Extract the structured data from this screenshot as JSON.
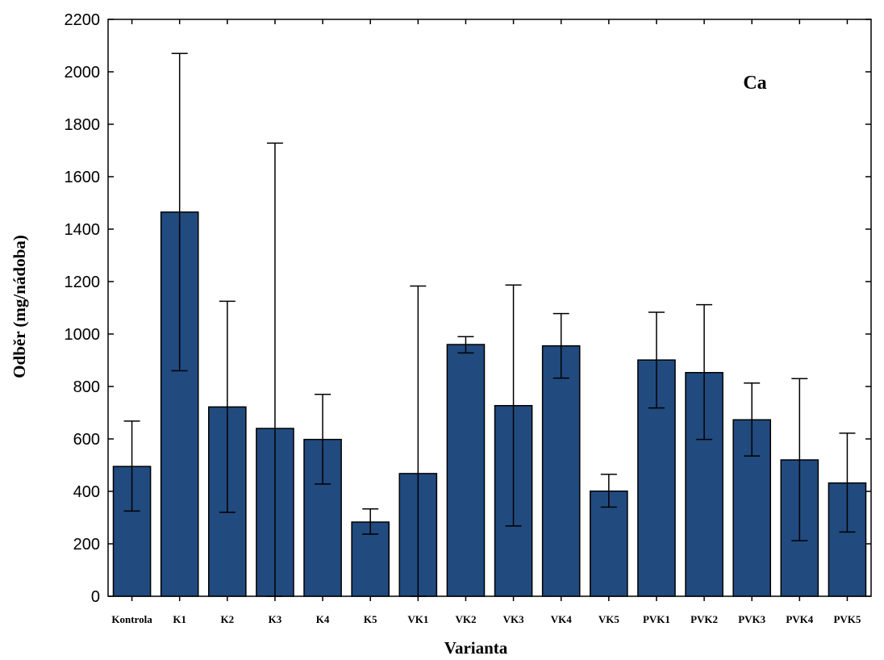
{
  "chart_data": {
    "type": "bar",
    "annotation": "Ca",
    "xlabel": "Varianta",
    "ylabel": "Odběr (mg/nádoba)",
    "ylim": [
      0,
      2200
    ],
    "yticks": [
      0,
      200,
      400,
      600,
      800,
      1000,
      1200,
      1400,
      1600,
      1800,
      2000,
      2200
    ],
    "grid": false,
    "bar_color": "#214a7f",
    "categories": [
      "Kontrola",
      "K1",
      "K2",
      "K3",
      "K4",
      "K5",
      "VK1",
      "VK2",
      "VK3",
      "VK4",
      "VK5",
      "PVK1",
      "PVK2",
      "PVK3",
      "PVK4",
      "PVK5"
    ],
    "values": [
      495,
      1465,
      722,
      640,
      598,
      283,
      468,
      960,
      727,
      955,
      401,
      901,
      853,
      673,
      520,
      432
    ],
    "error_low": [
      325,
      860,
      320,
      0,
      428,
      237,
      0,
      928,
      268,
      832,
      340,
      718,
      598,
      535,
      212,
      245
    ],
    "error_high": [
      668,
      2070,
      1125,
      1728,
      770,
      333,
      1183,
      990,
      1187,
      1078,
      465,
      1083,
      1112,
      813,
      830,
      622
    ]
  }
}
